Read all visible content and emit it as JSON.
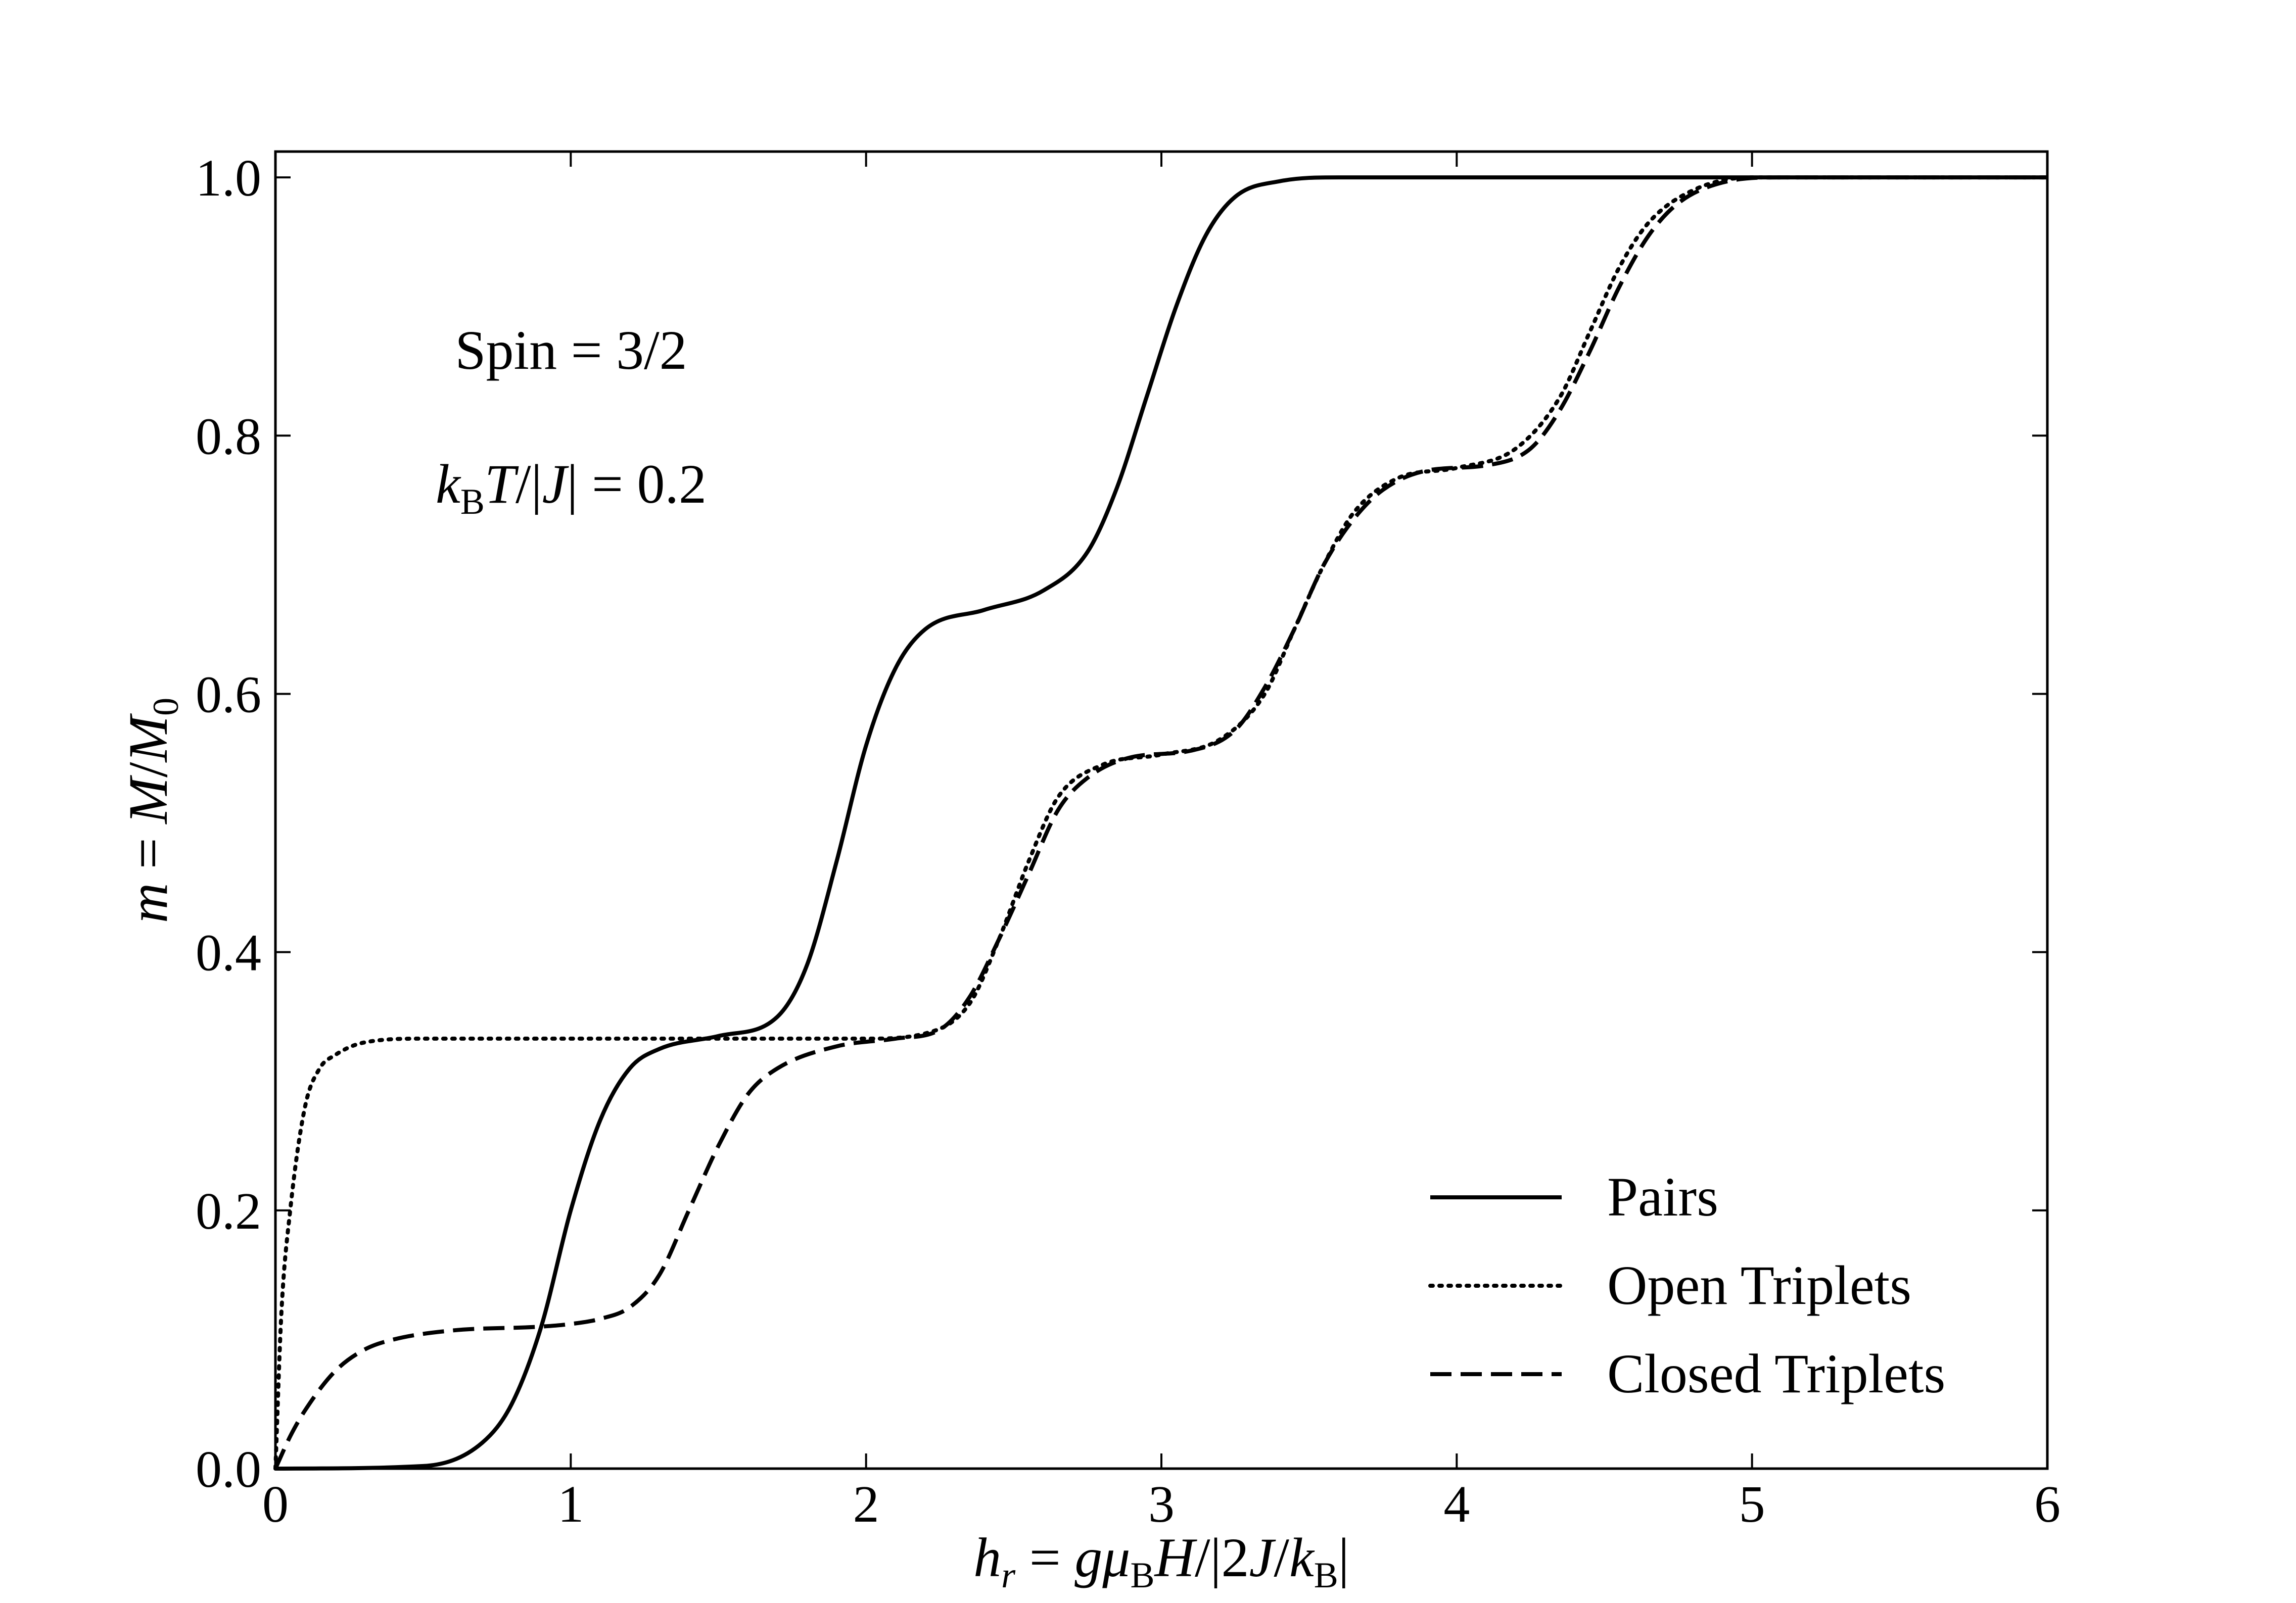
{
  "chart_data": {
    "type": "line",
    "xlabel": "h_r = gμ_B H/|2J/k_B|",
    "ylabel": "m = M/M_0",
    "xlim": [
      0,
      6
    ],
    "ylim": [
      0,
      1.02
    ],
    "xticks": [
      "0",
      "1",
      "2",
      "3",
      "4",
      "5",
      "6"
    ],
    "yticks": [
      "0.0",
      "0.2",
      "0.4",
      "0.6",
      "0.8",
      "1.0"
    ],
    "grid": false,
    "legend_position": "lower-right",
    "annotations": [
      "Spin = 3/2",
      "k_B T/|J| = 0.2"
    ],
    "series": [
      {
        "name": "Pairs",
        "style": "solid",
        "x": [
          0,
          0.5,
          0.7,
          0.8,
          0.9,
          1.0,
          1.1,
          1.2,
          1.3,
          1.5,
          1.7,
          1.8,
          1.9,
          2.0,
          2.1,
          2.2,
          2.4,
          2.6,
          2.75,
          2.85,
          2.95,
          3.05,
          3.15,
          3.25,
          3.4,
          3.6,
          4.0,
          6.0
        ],
        "y": [
          0,
          0.002,
          0.02,
          0.05,
          0.11,
          0.2,
          0.27,
          0.31,
          0.325,
          0.335,
          0.35,
          0.39,
          0.47,
          0.56,
          0.62,
          0.65,
          0.665,
          0.68,
          0.71,
          0.76,
          0.83,
          0.9,
          0.955,
          0.985,
          0.997,
          1.0,
          1.0,
          1.0
        ]
      },
      {
        "name": "Open Triplets",
        "style": "dotted",
        "x": [
          0,
          0.02,
          0.05,
          0.1,
          0.15,
          0.2,
          0.3,
          0.5,
          1.0,
          2.0,
          2.2,
          2.35,
          2.45,
          2.55,
          2.65,
          2.8,
          3.0,
          3.2,
          3.35,
          3.45,
          3.55,
          3.65,
          3.8,
          4.0,
          4.2,
          4.35,
          4.45,
          4.55,
          4.65,
          4.8,
          5.0,
          6.0
        ],
        "y": [
          0,
          0.12,
          0.2,
          0.28,
          0.31,
          0.32,
          0.33,
          0.333,
          0.333,
          0.333,
          0.337,
          0.36,
          0.41,
          0.47,
          0.52,
          0.545,
          0.553,
          0.565,
          0.6,
          0.65,
          0.7,
          0.74,
          0.767,
          0.775,
          0.79,
          0.83,
          0.88,
          0.93,
          0.965,
          0.99,
          1.0,
          1.0
        ]
      },
      {
        "name": "Closed Triplets",
        "style": "dashed",
        "x": [
          0,
          0.05,
          0.1,
          0.2,
          0.3,
          0.4,
          0.6,
          0.9,
          1.0,
          1.1,
          1.2,
          1.3,
          1.4,
          1.5,
          1.6,
          1.7,
          1.9,
          2.1,
          2.25,
          2.35,
          2.45,
          2.55,
          2.65,
          2.75,
          2.9,
          3.1,
          3.25,
          3.35,
          3.45,
          3.55,
          3.65,
          3.75,
          3.9,
          4.1,
          4.25,
          4.35,
          4.45,
          4.55,
          4.65,
          4.75,
          4.9,
          5.1,
          6.0
        ],
        "y": [
          0,
          0.025,
          0.045,
          0.075,
          0.092,
          0.1,
          0.107,
          0.11,
          0.112,
          0.116,
          0.125,
          0.15,
          0.2,
          0.25,
          0.29,
          0.31,
          0.327,
          0.333,
          0.34,
          0.365,
          0.41,
          0.46,
          0.51,
          0.535,
          0.551,
          0.556,
          0.572,
          0.605,
          0.65,
          0.7,
          0.735,
          0.758,
          0.773,
          0.777,
          0.79,
          0.82,
          0.865,
          0.915,
          0.955,
          0.98,
          0.996,
          1.0,
          1.0
        ]
      }
    ]
  }
}
